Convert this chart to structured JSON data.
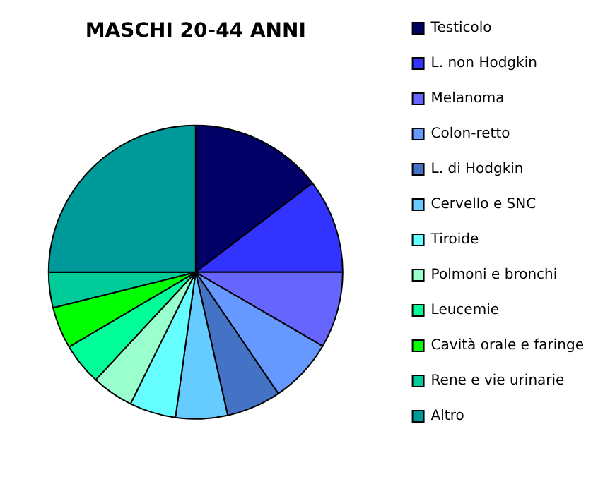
{
  "chart_data": {
    "type": "pie",
    "title": "MASCHI 20-44 ANNI",
    "categories": [
      "Testicolo",
      "L. non Hodgkin",
      "Melanoma",
      "Colon-retto",
      "L. di Hodgkin",
      "Cervello e SNC",
      "Tiroide",
      "Polmoni e bronchi",
      "Leucemie",
      "Cavità orale e faringe",
      "Rene e vie urinarie",
      "Altro"
    ],
    "values": [
      14.6,
      10.4,
      8.4,
      7.1,
      6.0,
      5.7,
      5.1,
      4.6,
      4.6,
      4.6,
      3.9,
      25
    ],
    "colors": [
      "#000066",
      "#3333ff",
      "#6666ff",
      "#6699ff",
      "#4472c4",
      "#66ccff",
      "#66ffff",
      "#99ffcc",
      "#00ff99",
      "#00ff00",
      "#00cc99",
      "#009999"
    ],
    "legend": "right"
  }
}
